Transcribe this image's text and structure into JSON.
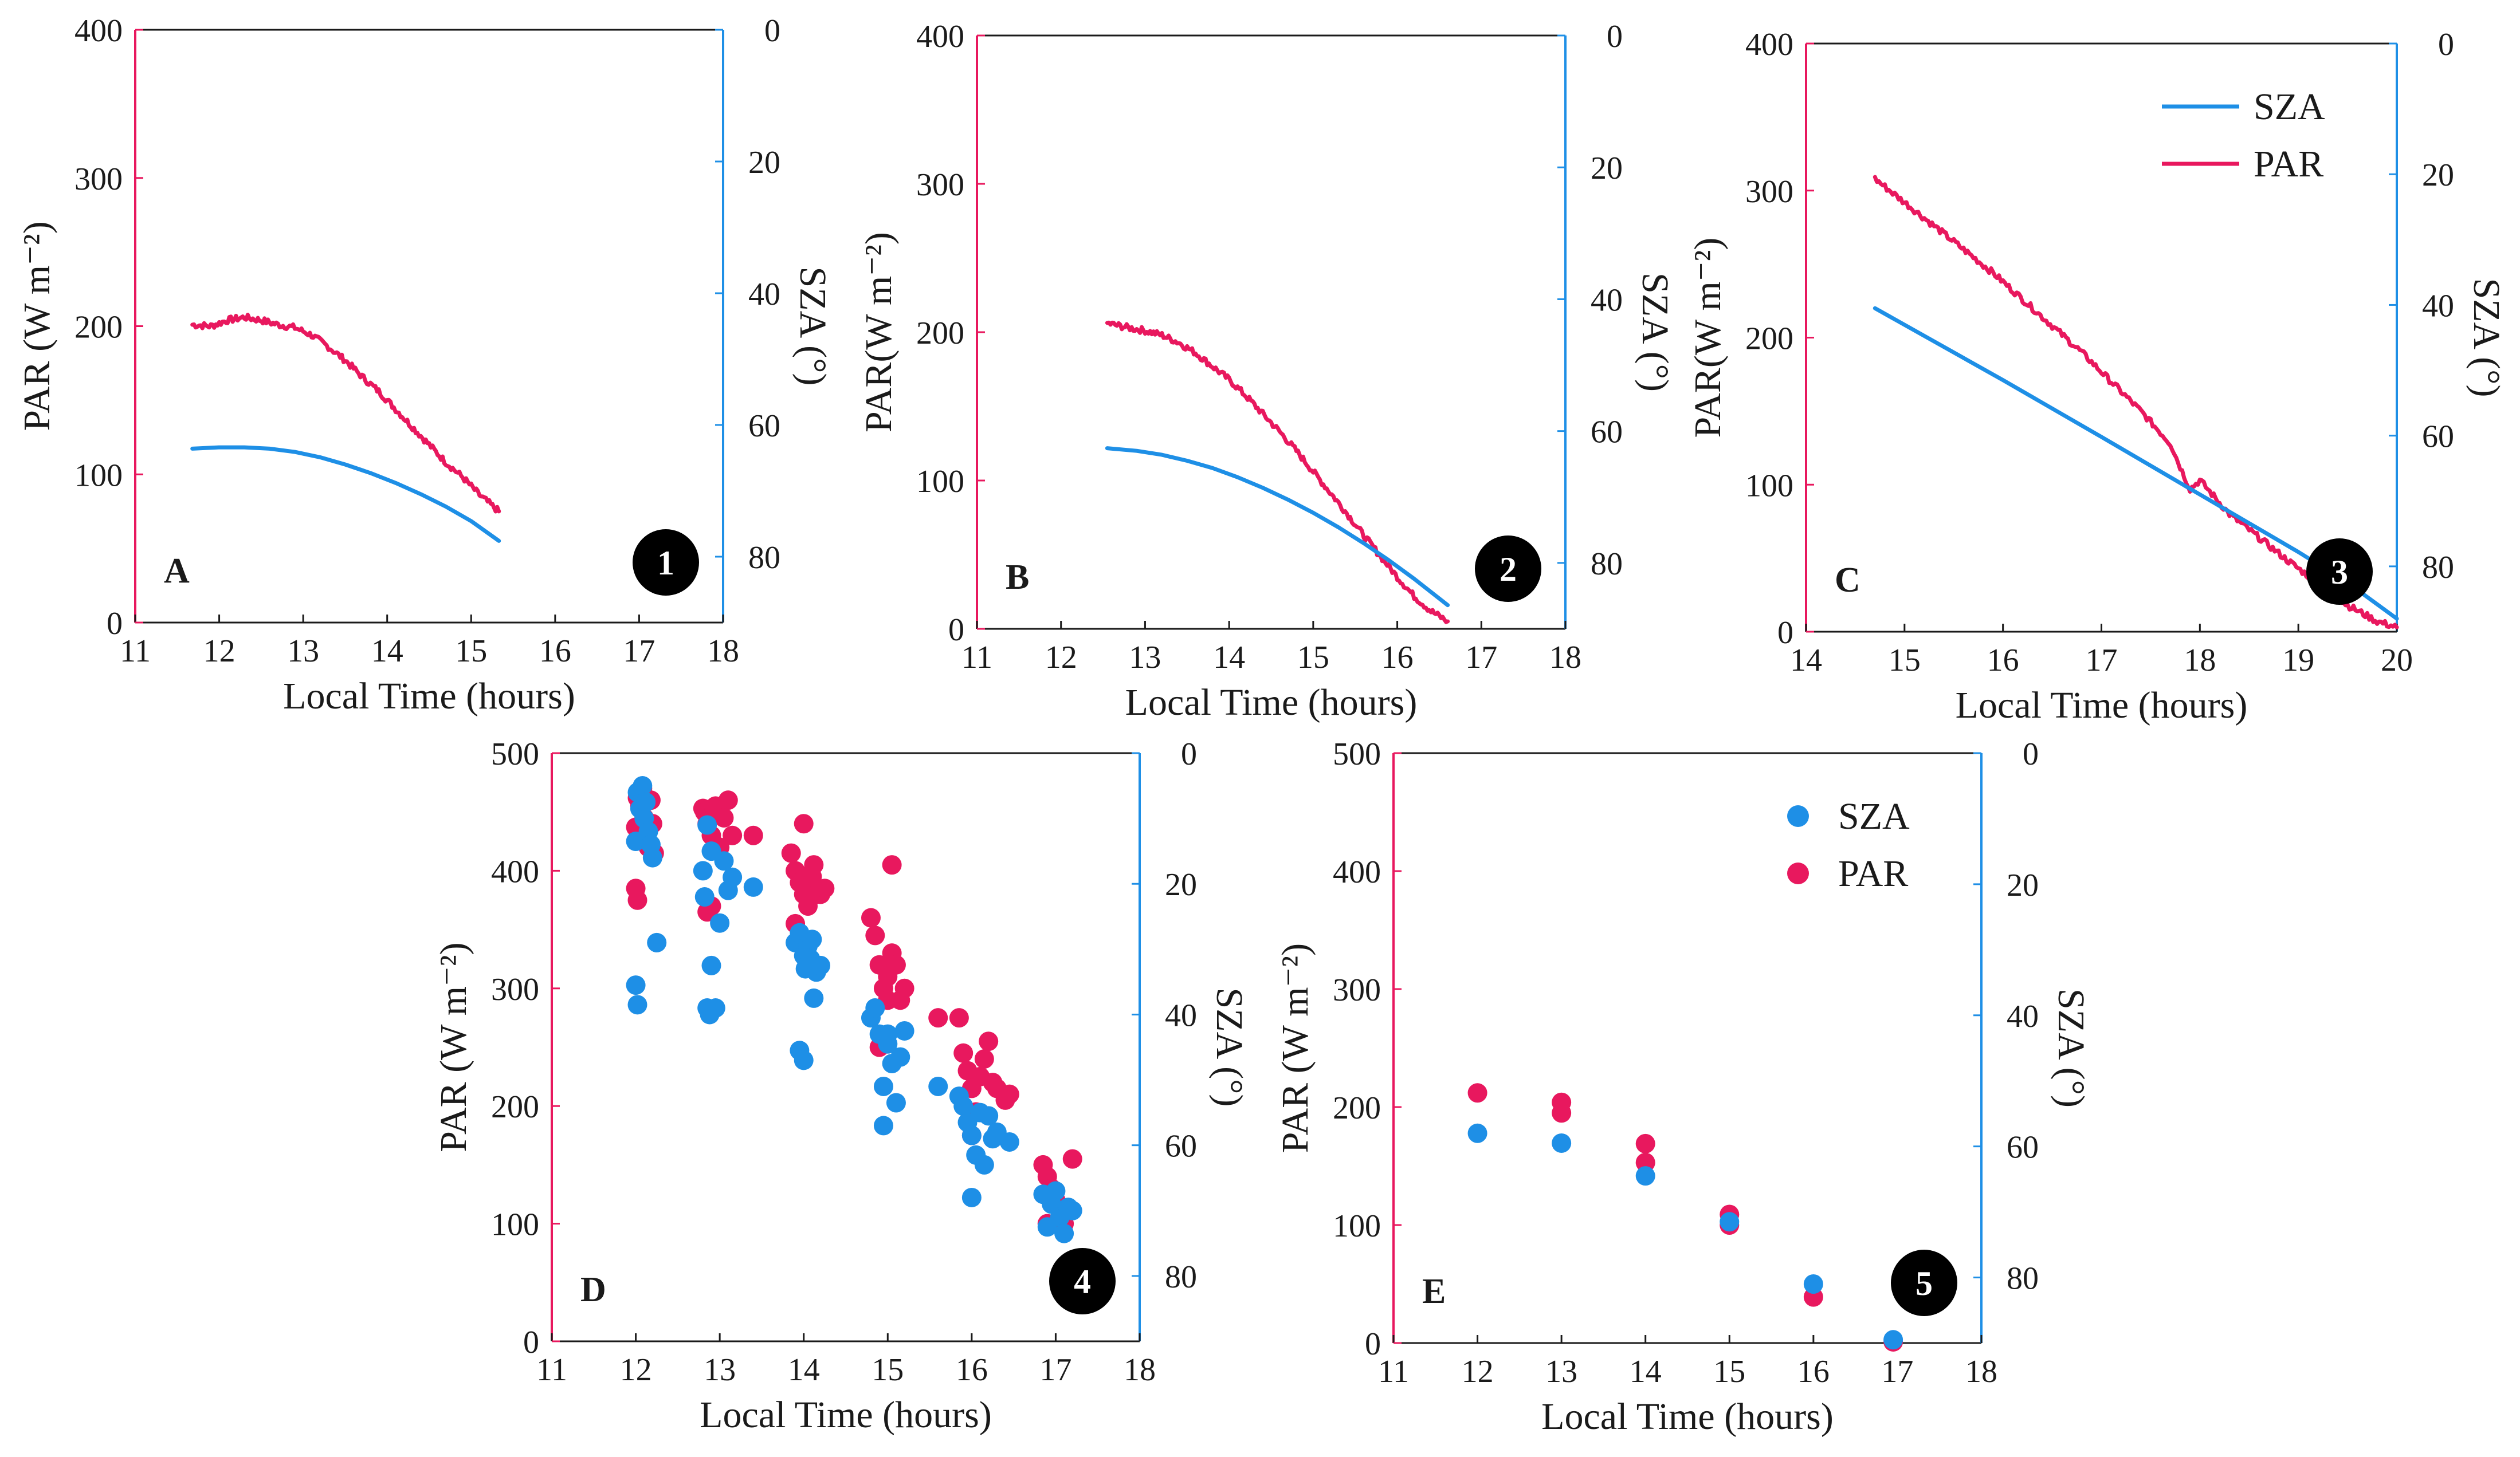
{
  "colors": {
    "par": "#e8185e",
    "sza": "#1e8fe6",
    "axis": "#1a1a1a",
    "badge": "#000000",
    "badge_text": "#ffffff"
  },
  "chart_data": [
    {
      "id": "A",
      "type": "line",
      "panel_label": "A",
      "badge": "1",
      "xlabel": "Local Time (hours)",
      "ylabel": "PAR (W m⁻²)",
      "y2label": "SZA (°)",
      "xlim": [
        11,
        18
      ],
      "xticks": [
        11,
        12,
        13,
        14,
        15,
        16,
        17,
        18
      ],
      "ylim": [
        0,
        400
      ],
      "yticks": [
        0,
        100,
        200,
        300,
        400
      ],
      "y2lim": [
        0,
        90
      ],
      "y2ticks": [
        0,
        20,
        40,
        60,
        80
      ],
      "y2_inverted": true,
      "series": [
        {
          "name": "PAR",
          "axis": "left",
          "noise": true,
          "x": [
            11.68,
            11.9,
            12.1,
            12.3,
            12.5,
            12.7,
            12.9,
            13.1,
            13.3,
            13.5,
            13.7,
            13.9,
            14.1,
            14.3,
            14.5,
            14.7,
            14.9,
            15.1,
            15.33
          ],
          "y": [
            201,
            200,
            204,
            206,
            204,
            201,
            199,
            194,
            186,
            177,
            166,
            156,
            144,
            132,
            120,
            108,
            98,
            86,
            75
          ]
        },
        {
          "name": "SZA",
          "axis": "right",
          "x": [
            11.68,
            12.0,
            12.3,
            12.6,
            12.9,
            13.2,
            13.5,
            13.8,
            14.1,
            14.4,
            14.7,
            15.0,
            15.33
          ],
          "y": [
            63.6,
            63.4,
            63.4,
            63.6,
            64.1,
            64.9,
            66.0,
            67.3,
            68.8,
            70.5,
            72.4,
            74.6,
            77.6
          ]
        }
      ]
    },
    {
      "id": "B",
      "type": "line",
      "panel_label": "B",
      "badge": "2",
      "xlabel": "Local Time (hours)",
      "ylabel": "PAR(W m⁻²)",
      "y2label": "SZA (°)",
      "xlim": [
        11,
        18
      ],
      "xticks": [
        11,
        12,
        13,
        14,
        15,
        16,
        17,
        18
      ],
      "ylim": [
        0,
        400
      ],
      "yticks": [
        0,
        100,
        200,
        300,
        400
      ],
      "y2lim": [
        0,
        90
      ],
      "y2ticks": [
        0,
        20,
        40,
        60,
        80
      ],
      "y2_inverted": true,
      "series": [
        {
          "name": "PAR",
          "axis": "left",
          "noise": true,
          "x": [
            12.55,
            12.8,
            13.0,
            13.2,
            13.4,
            13.6,
            13.8,
            14.0,
            14.2,
            14.4,
            14.6,
            14.8,
            15.0,
            15.2,
            15.4,
            15.6,
            15.8,
            16.0,
            16.2,
            16.4,
            16.6
          ],
          "y": [
            206,
            203,
            201,
            198,
            193,
            186,
            177,
            168,
            157,
            145,
            133,
            120,
            106,
            92,
            78,
            63,
            49,
            35,
            22,
            12,
            5
          ]
        },
        {
          "name": "SZA",
          "axis": "right",
          "x": [
            12.55,
            12.9,
            13.2,
            13.5,
            13.8,
            14.1,
            14.4,
            14.7,
            15.0,
            15.3,
            15.6,
            15.9,
            16.2,
            16.6
          ],
          "y": [
            62.6,
            63.0,
            63.6,
            64.5,
            65.6,
            67.0,
            68.6,
            70.4,
            72.4,
            74.6,
            77.0,
            79.6,
            82.4,
            86.4
          ]
        }
      ]
    },
    {
      "id": "C",
      "type": "line",
      "panel_label": "C",
      "badge": "3",
      "xlabel": "Local Time (hours)",
      "ylabel": "PAR(W m⁻²)",
      "y2label": "SZA (°)",
      "xlim": [
        14,
        20
      ],
      "xticks": [
        14,
        15,
        16,
        17,
        18,
        19,
        20
      ],
      "ylim": [
        0,
        400
      ],
      "yticks": [
        0,
        100,
        200,
        300,
        400
      ],
      "y2lim": [
        0,
        90
      ],
      "y2ticks": [
        0,
        20,
        40,
        60,
        80
      ],
      "y2_inverted": true,
      "legend": {
        "position": "top-right",
        "entries": [
          "SZA",
          "PAR"
        ]
      },
      "series": [
        {
          "name": "PAR",
          "axis": "left",
          "noise": true,
          "x": [
            14.7,
            15.0,
            15.3,
            15.6,
            15.9,
            16.2,
            16.5,
            16.8,
            17.1,
            17.4,
            17.7,
            17.8,
            17.9,
            18.0,
            18.3,
            18.6,
            18.9,
            19.2,
            19.5,
            19.8,
            20.0
          ],
          "y": [
            308,
            292,
            276,
            260,
            244,
            226,
            208,
            190,
            170,
            150,
            128,
            112,
            97,
            103,
            80,
            64,
            48,
            33,
            18,
            7,
            3
          ]
        },
        {
          "name": "SZA",
          "axis": "right",
          "x": [
            14.7,
            16.0,
            17.0,
            18.0,
            19.0,
            19.5,
            20.0
          ],
          "y": [
            40.5,
            51.5,
            60.2,
            69.0,
            77.8,
            82.5,
            88.0
          ]
        }
      ]
    },
    {
      "id": "D",
      "type": "scatter",
      "panel_label": "D",
      "badge": "4",
      "xlabel": "Local Time (hours)",
      "ylabel": "PAR (W m⁻²)",
      "y2label": "SZA (°)",
      "xlim": [
        11,
        18
      ],
      "xticks": [
        11,
        12,
        13,
        14,
        15,
        16,
        17,
        18
      ],
      "ylim": [
        0,
        500
      ],
      "yticks": [
        0,
        100,
        200,
        300,
        400,
        500
      ],
      "y2lim": [
        0,
        90
      ],
      "y2ticks": [
        0,
        20,
        40,
        60,
        80
      ],
      "y2_inverted": true,
      "series": [
        {
          "name": "PAR",
          "axis": "left",
          "x": [
            12.0,
            12.02,
            12.05,
            12.08,
            12.1,
            12.12,
            12.15,
            12.18,
            12.2,
            12.22,
            12.0,
            12.02,
            12.8,
            12.82,
            12.85,
            12.88,
            12.9,
            12.95,
            13.0,
            13.05,
            13.1,
            13.15,
            12.85,
            12.9,
            13.4,
            13.85,
            13.9,
            13.95,
            14.0,
            14.02,
            14.05,
            14.08,
            14.1,
            14.12,
            14.15,
            14.2,
            14.25,
            13.9,
            14.0,
            14.8,
            14.85,
            14.9,
            14.95,
            15.0,
            15.05,
            15.1,
            15.15,
            15.2,
            15.0,
            15.05,
            14.9,
            15.6,
            15.85,
            15.9,
            15.95,
            16.0,
            16.05,
            16.1,
            16.15,
            16.2,
            16.25,
            16.3,
            16.4,
            16.45,
            16.0,
            16.85,
            16.9,
            16.95,
            17.0,
            17.05,
            17.1,
            17.15,
            17.2,
            16.9
          ],
          "y": [
            437,
            462,
            455,
            470,
            445,
            460,
            420,
            460,
            440,
            415,
            385,
            375,
            453,
            450,
            440,
            445,
            430,
            455,
            420,
            445,
            460,
            430,
            365,
            370,
            430,
            415,
            400,
            390,
            380,
            395,
            370,
            385,
            395,
            405,
            380,
            380,
            385,
            355,
            440,
            360,
            345,
            320,
            300,
            310,
            330,
            320,
            290,
            300,
            290,
            405,
            250,
            275,
            275,
            245,
            230,
            215,
            195,
            225,
            240,
            255,
            220,
            215,
            205,
            210,
            175,
            150,
            140,
            130,
            120,
            115,
            100,
            110,
            155,
            100
          ]
        },
        {
          "name": "SZA",
          "axis": "right",
          "x": [
            12.0,
            12.02,
            12.05,
            12.08,
            12.1,
            12.12,
            12.15,
            12.18,
            12.2,
            12.0,
            12.02,
            12.25,
            12.8,
            12.82,
            12.85,
            12.88,
            12.9,
            12.95,
            13.0,
            13.05,
            13.1,
            13.15,
            12.85,
            12.9,
            13.4,
            13.9,
            13.95,
            14.0,
            14.02,
            14.05,
            14.08,
            14.1,
            14.12,
            14.15,
            14.2,
            13.95,
            14.0,
            14.8,
            14.85,
            14.9,
            14.95,
            15.0,
            15.05,
            15.1,
            15.15,
            15.2,
            14.95,
            15.0,
            15.6,
            15.85,
            15.9,
            15.95,
            16.0,
            16.05,
            16.1,
            16.15,
            16.2,
            16.25,
            16.3,
            16.45,
            16.0,
            16.85,
            16.9,
            16.95,
            17.0,
            17.05,
            17.1,
            17.15,
            17.2
          ],
          "y": [
            13.5,
            6.0,
            8.5,
            5.0,
            10.0,
            7.5,
            12.0,
            14.0,
            16.0,
            35.5,
            38.5,
            29.0,
            18.0,
            22.0,
            39.0,
            40.0,
            32.5,
            39.0,
            26.0,
            16.5,
            21.0,
            19.0,
            11.0,
            15.0,
            20.5,
            29.0,
            27.5,
            31.0,
            33.0,
            29.5,
            31.5,
            28.5,
            37.5,
            33.5,
            32.5,
            45.5,
            47.0,
            40.5,
            39.0,
            43.0,
            51.0,
            44.5,
            47.5,
            53.5,
            46.5,
            42.5,
            57.0,
            43.0,
            51.0,
            52.5,
            54.0,
            56.5,
            58.5,
            61.5,
            55.0,
            63.0,
            55.5,
            59.0,
            58.0,
            59.5,
            68.0,
            67.5,
            72.5,
            69.0,
            67.0,
            71.0,
            73.5,
            69.5,
            70.0
          ]
        }
      ]
    },
    {
      "id": "E",
      "type": "scatter",
      "panel_label": "E",
      "badge": "5",
      "xlabel": "Local Time (hours)",
      "ylabel": "PAR (W m⁻²)",
      "y2label": "SZA (°)",
      "xlim": [
        11,
        18
      ],
      "xticks": [
        11,
        12,
        13,
        14,
        15,
        16,
        17,
        18
      ],
      "ylim": [
        0,
        500
      ],
      "yticks": [
        0,
        100,
        200,
        300,
        400,
        500
      ],
      "y2lim": [
        0,
        90
      ],
      "y2ticks": [
        0,
        20,
        40,
        60,
        80
      ],
      "y2_inverted": true,
      "legend": {
        "position": "top-right",
        "entries": [
          "SZA",
          "PAR"
        ]
      },
      "series": [
        {
          "name": "PAR",
          "axis": "left",
          "x": [
            12.0,
            13.0,
            13.0,
            14.0,
            14.0,
            15.0,
            15.0,
            16.0,
            16.95
          ],
          "y": [
            212,
            204,
            195,
            169,
            153,
            109,
            100,
            39,
            1
          ]
        },
        {
          "name": "SZA",
          "axis": "right",
          "x": [
            12.0,
            13.0,
            14.0,
            15.0,
            16.0,
            16.95
          ],
          "y": [
            58.0,
            59.5,
            64.5,
            71.5,
            81.0,
            89.5
          ]
        }
      ]
    }
  ]
}
